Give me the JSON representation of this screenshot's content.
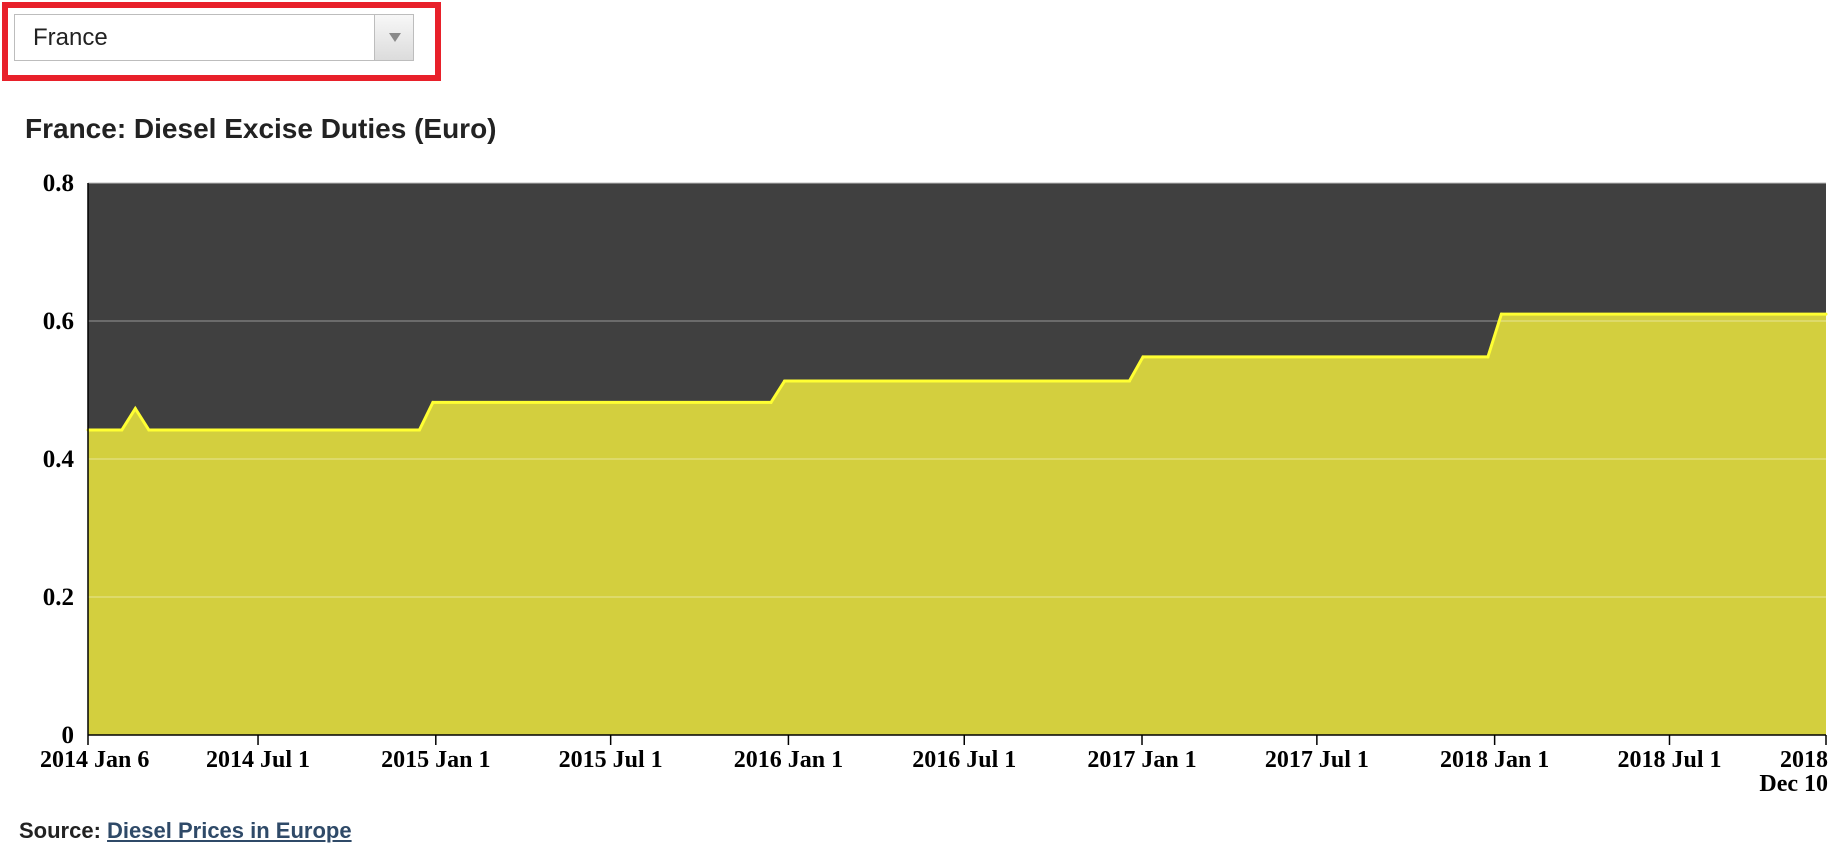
{
  "country_selector": {
    "selected": "France",
    "icon": "chevron-down-icon"
  },
  "source": {
    "label": "Source:",
    "link_text": "Diesel Prices in Europe"
  },
  "colors": {
    "highlight_box": "#e8202a",
    "plot_background": "#404040",
    "area_fill": "#d3cf3e",
    "line": "#ffff33",
    "link": "#2f4a68"
  },
  "chart_data": {
    "type": "area",
    "title": "France: Diesel Excise Duties (Euro)",
    "xlabel": "",
    "ylabel": "",
    "xlim": [
      "2014-01-06",
      "2018-12-10"
    ],
    "ylim": [
      0,
      0.8
    ],
    "y_ticks": [
      0,
      0.2,
      0.4,
      0.6,
      0.8
    ],
    "y_tick_labels": [
      "0",
      "0.2",
      "0.4",
      "0.6",
      "0.8"
    ],
    "x_ticks": [
      {
        "date": "2014-01-06",
        "label": "2014 Jan 6"
      },
      {
        "date": "2014-07-01",
        "label": "2014 Jul 1"
      },
      {
        "date": "2015-01-01",
        "label": "2015 Jan 1"
      },
      {
        "date": "2015-07-01",
        "label": "2015 Jul 1"
      },
      {
        "date": "2016-01-01",
        "label": "2016 Jan 1"
      },
      {
        "date": "2016-07-01",
        "label": "2016 Jul 1"
      },
      {
        "date": "2017-01-01",
        "label": "2017 Jan 1"
      },
      {
        "date": "2017-07-01",
        "label": "2017 Jul 1"
      },
      {
        "date": "2018-01-01",
        "label": "2018 Jan 1"
      },
      {
        "date": "2018-07-01",
        "label": "2018 Jul 1"
      },
      {
        "date": "2018-12-10",
        "label": "2018",
        "label2": "Dec 10"
      }
    ],
    "grid": true,
    "legend": "none",
    "series": [
      {
        "x": [
          "2014-01-06",
          "2014-02-10",
          "2014-02-24",
          "2014-03-10",
          "2014-12-15",
          "2014-12-29",
          "2015-12-14",
          "2015-12-28",
          "2016-12-19",
          "2017-01-02",
          "2017-12-25",
          "2018-01-08",
          "2018-12-10"
        ],
        "y": [
          0.442,
          0.442,
          0.473,
          0.442,
          0.442,
          0.482,
          0.482,
          0.513,
          0.513,
          0.548,
          0.548,
          0.61,
          0.61
        ]
      }
    ]
  }
}
